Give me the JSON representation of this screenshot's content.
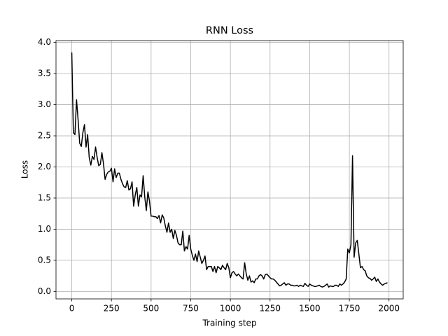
{
  "chart_data": {
    "type": "line",
    "title": "RNN Loss",
    "x_label": "Training step",
    "y_label": "Loss",
    "color": "#000000",
    "grid": true,
    "x": [
      0,
      10,
      20,
      30,
      40,
      50,
      60,
      70,
      80,
      90,
      100,
      110,
      120,
      130,
      140,
      150,
      160,
      170,
      180,
      190,
      200,
      210,
      220,
      230,
      240,
      250,
      260,
      270,
      280,
      290,
      300,
      310,
      320,
      330,
      340,
      350,
      360,
      370,
      380,
      390,
      400,
      410,
      420,
      430,
      440,
      450,
      460,
      470,
      480,
      490,
      500,
      510,
      520,
      530,
      540,
      550,
      560,
      570,
      580,
      590,
      600,
      610,
      620,
      630,
      640,
      650,
      660,
      670,
      680,
      690,
      700,
      710,
      720,
      730,
      740,
      750,
      760,
      770,
      780,
      790,
      800,
      810,
      820,
      830,
      840,
      850,
      860,
      870,
      880,
      890,
      900,
      910,
      920,
      930,
      940,
      950,
      960,
      970,
      980,
      990,
      1000,
      1010,
      1020,
      1030,
      1040,
      1050,
      1060,
      1070,
      1080,
      1090,
      1100,
      1110,
      1120,
      1130,
      1140,
      1150,
      1160,
      1170,
      1180,
      1190,
      1200,
      1210,
      1220,
      1230,
      1240,
      1250,
      1260,
      1270,
      1280,
      1290,
      1300,
      1310,
      1320,
      1330,
      1340,
      1350,
      1360,
      1370,
      1380,
      1390,
      1400,
      1410,
      1420,
      1430,
      1440,
      1450,
      1460,
      1470,
      1480,
      1490,
      1500,
      1510,
      1520,
      1530,
      1540,
      1550,
      1560,
      1570,
      1580,
      1590,
      1600,
      1610,
      1620,
      1630,
      1640,
      1650,
      1660,
      1670,
      1680,
      1690,
      1700,
      1710,
      1720,
      1730,
      1740,
      1750,
      1760,
      1770,
      1780,
      1790,
      1800,
      1810,
      1820,
      1830,
      1840,
      1850,
      1860,
      1870,
      1880,
      1890,
      1900,
      1910,
      1920,
      1930,
      1940,
      1950,
      1960,
      1970,
      1980,
      1990
    ],
    "values": [
      3.84,
      2.55,
      2.52,
      3.08,
      2.75,
      2.38,
      2.33,
      2.55,
      2.68,
      2.32,
      2.52,
      2.15,
      2.03,
      2.17,
      2.12,
      2.32,
      2.15,
      2.02,
      2.04,
      2.23,
      2.05,
      1.8,
      1.88,
      1.92,
      1.93,
      1.98,
      1.76,
      1.97,
      1.83,
      1.9,
      1.9,
      1.8,
      1.73,
      1.68,
      1.67,
      1.78,
      1.63,
      1.65,
      1.76,
      1.37,
      1.55,
      1.67,
      1.37,
      1.55,
      1.52,
      1.86,
      1.52,
      1.3,
      1.6,
      1.45,
      1.21,
      1.21,
      1.2,
      1.2,
      1.17,
      1.22,
      1.1,
      1.23,
      1.18,
      1.05,
      0.95,
      1.1,
      0.95,
      1.0,
      0.85,
      0.98,
      0.9,
      0.78,
      0.75,
      0.75,
      0.97,
      0.65,
      0.72,
      0.68,
      0.9,
      0.68,
      0.58,
      0.5,
      0.6,
      0.48,
      0.65,
      0.55,
      0.45,
      0.5,
      0.57,
      0.35,
      0.4,
      0.4,
      0.4,
      0.32,
      0.4,
      0.3,
      0.4,
      0.38,
      0.35,
      0.42,
      0.38,
      0.35,
      0.45,
      0.38,
      0.22,
      0.3,
      0.32,
      0.28,
      0.25,
      0.28,
      0.25,
      0.22,
      0.2,
      0.46,
      0.28,
      0.18,
      0.25,
      0.15,
      0.17,
      0.14,
      0.2,
      0.2,
      0.25,
      0.27,
      0.25,
      0.2,
      0.27,
      0.28,
      0.25,
      0.22,
      0.2,
      0.2,
      0.18,
      0.15,
      0.12,
      0.09,
      0.1,
      0.12,
      0.14,
      0.1,
      0.12,
      0.12,
      0.1,
      0.1,
      0.09,
      0.09,
      0.1,
      0.08,
      0.1,
      0.09,
      0.08,
      0.13,
      0.1,
      0.08,
      0.12,
      0.1,
      0.09,
      0.08,
      0.08,
      0.09,
      0.1,
      0.08,
      0.07,
      0.08,
      0.1,
      0.12,
      0.07,
      0.09,
      0.08,
      0.08,
      0.1,
      0.1,
      0.08,
      0.12,
      0.1,
      0.12,
      0.15,
      0.2,
      0.68,
      0.62,
      0.75,
      2.18,
      0.55,
      0.78,
      0.82,
      0.6,
      0.38,
      0.4,
      0.35,
      0.33,
      0.25,
      0.22,
      0.21,
      0.18,
      0.2,
      0.23,
      0.16,
      0.2,
      0.15,
      0.12,
      0.1,
      0.12,
      0.13,
      0.14
    ],
    "xlim": [
      -99.5,
      2089.5
    ],
    "xticks": [
      0,
      250,
      500,
      750,
      1000,
      1250,
      1500,
      1750,
      2000
    ],
    "ylim": [
      -0.12,
      4.03
    ],
    "yticks": [
      {
        "value": 0,
        "label": "0.0"
      },
      {
        "value": 0.5,
        "label": "0.5"
      },
      {
        "value": 1,
        "label": "1.0"
      },
      {
        "value": 1.5,
        "label": "1.5"
      },
      {
        "value": 2,
        "label": "2.0"
      },
      {
        "value": 2.5,
        "label": "2.5"
      },
      {
        "value": 3,
        "label": "3.0"
      },
      {
        "value": 3.5,
        "label": "3.5"
      },
      {
        "value": 4,
        "label": "4.0"
      }
    ]
  }
}
